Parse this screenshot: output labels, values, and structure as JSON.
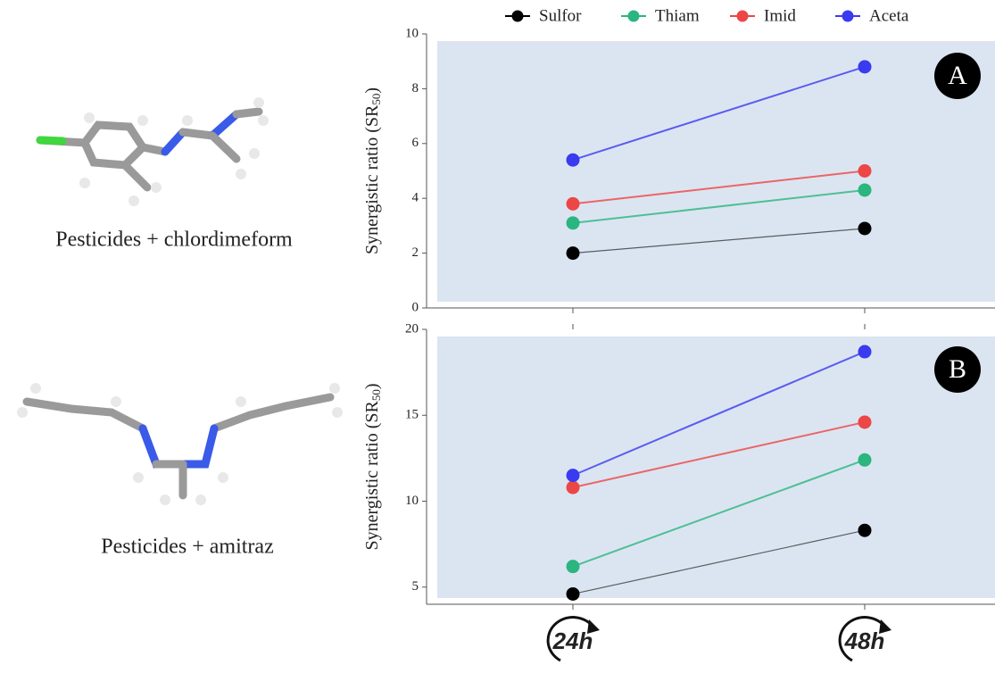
{
  "chart_data": [
    {
      "type": "line",
      "panel_label": "A",
      "y_label": {
        "text": "Synergistic ratio (SR",
        "subscript": "50",
        "suffix": ")"
      },
      "categories": [
        "24h",
        "48h"
      ],
      "ylim": [
        0,
        10
      ],
      "yticks": [
        0,
        2,
        4,
        6,
        8,
        10
      ],
      "series": [
        {
          "name": "Sulfor",
          "color": "#000000",
          "values": [
            2.0,
            2.9
          ]
        },
        {
          "name": "Thiam",
          "color": "#2bb57f",
          "values": [
            3.1,
            4.3
          ]
        },
        {
          "name": "Imid",
          "color": "#ec4646",
          "values": [
            3.8,
            5.0
          ]
        },
        {
          "name": "Aceta",
          "color": "#3a3af0",
          "values": [
            5.4,
            8.8
          ]
        }
      ]
    },
    {
      "type": "line",
      "panel_label": "B",
      "y_label": {
        "text": "Synergistic ratio (SR",
        "subscript": "50",
        "suffix": ")"
      },
      "ylim": [
        4,
        20
      ],
      "yticks": [
        5,
        10,
        15,
        20
      ],
      "series": [
        {
          "color": "#000000",
          "values": [
            4.6,
            8.3
          ]
        },
        {
          "color": "#2bb57f",
          "values": [
            6.2,
            12.4
          ]
        },
        {
          "color": "#ec4646",
          "values": [
            10.8,
            14.6
          ]
        },
        {
          "color": "#3a3af0",
          "values": [
            11.5,
            18.7
          ]
        }
      ]
    }
  ],
  "molecules": [
    {
      "caption": "Pesticides + chlordimeform"
    },
    {
      "caption": "Pesticides + amitraz"
    }
  ]
}
